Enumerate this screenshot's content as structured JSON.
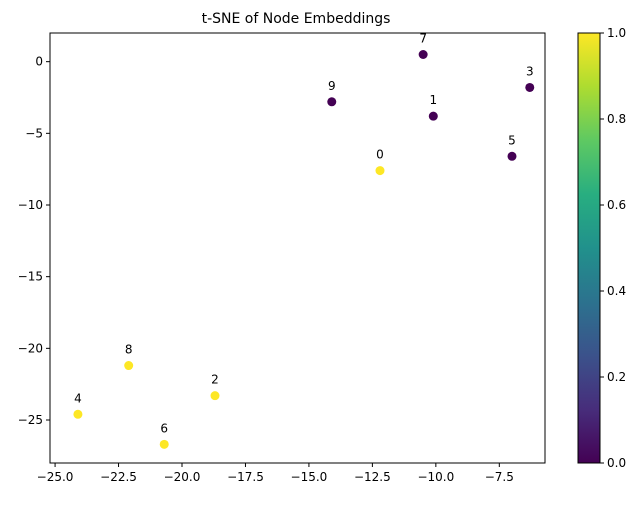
{
  "chart_data": {
    "type": "scatter",
    "title": "t-SNE of Node Embeddings",
    "xlabel": "",
    "ylabel": "",
    "xlim": [
      -25.2,
      -5.7
    ],
    "ylim": [
      -28.0,
      2.0
    ],
    "xticks": [
      -25.0,
      -22.5,
      -20.0,
      -17.5,
      -15.0,
      -12.5,
      -10.0,
      -7.5
    ],
    "xtick_labels": [
      "−25.0",
      "−22.5",
      "−20.0",
      "−17.5",
      "−15.0",
      "−12.5",
      "−10.0",
      "−7.5"
    ],
    "yticks": [
      0,
      -5,
      -10,
      -15,
      -20,
      -25
    ],
    "ytick_labels": [
      "0",
      "−5",
      "−10",
      "−15",
      "−20",
      "−25"
    ],
    "grid": false,
    "colormap": "viridis",
    "colorbar": {
      "min": 0.0,
      "max": 1.0,
      "ticks": [
        0.0,
        0.2,
        0.4,
        0.6,
        0.8,
        1.0
      ],
      "tick_labels": [
        "0.0",
        "0.2",
        "0.4",
        "0.6",
        "0.8",
        "1.0"
      ]
    },
    "points": [
      {
        "label": "0",
        "x": -12.2,
        "y": -7.6,
        "value": 1
      },
      {
        "label": "1",
        "x": -10.1,
        "y": -3.8,
        "value": 0
      },
      {
        "label": "2",
        "x": -18.7,
        "y": -23.3,
        "value": 1
      },
      {
        "label": "3",
        "x": -6.3,
        "y": -1.8,
        "value": 0
      },
      {
        "label": "4",
        "x": -24.1,
        "y": -24.6,
        "value": 1
      },
      {
        "label": "5",
        "x": -7.0,
        "y": -6.6,
        "value": 0
      },
      {
        "label": "6",
        "x": -20.7,
        "y": -26.7,
        "value": 1
      },
      {
        "label": "7",
        "x": -10.5,
        "y": 0.5,
        "value": 0
      },
      {
        "label": "8",
        "x": -22.1,
        "y": -21.2,
        "value": 1
      },
      {
        "label": "9",
        "x": -14.1,
        "y": -2.8,
        "value": 0
      }
    ]
  }
}
